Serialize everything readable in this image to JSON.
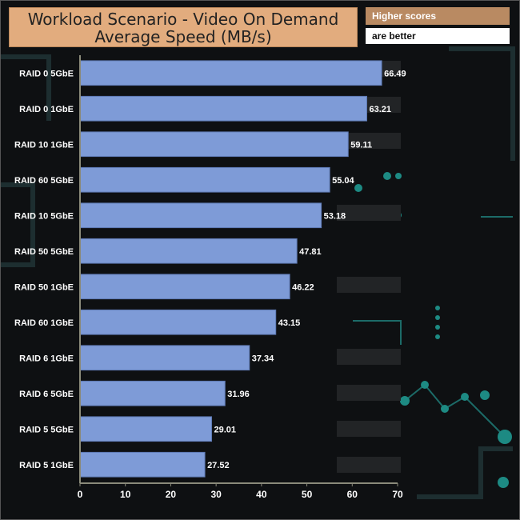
{
  "title_line1": "Workload Scenario - Video On Demand",
  "title_line2": "Average Speed (MB/s)",
  "note_line1": "Higher scores",
  "note_line2": "are better",
  "colors": {
    "bar": "#7e9bd7",
    "bar_edge": "#5d79b3",
    "title_bg": "#e2ac7e",
    "axis": "#8a8a7a"
  },
  "chart_data": {
    "type": "bar",
    "orientation": "horizontal",
    "title": "Workload Scenario - Video On Demand Average Speed (MB/s)",
    "categories": [
      "RAID 0 5GbE",
      "RAID 0 1GbE",
      "RAID 10 1GbE",
      "RAID 60 5GbE",
      "RAID 10 5GbE",
      "RAID 50 5GbE",
      "RAID 50 1GbE",
      "RAID 60 1GbE",
      "RAID 6 1GbE",
      "RAID 6 5GbE",
      "RAID 5 5GbE",
      "RAID 5 1GbE"
    ],
    "values": [
      66.49,
      63.21,
      59.11,
      55.04,
      53.18,
      47.81,
      46.22,
      43.15,
      37.34,
      31.96,
      29.01,
      27.52
    ],
    "value_labels": [
      "66.49",
      "63.21",
      "59.11",
      "55.04",
      "53.18",
      "47.81",
      "46.22",
      "43.15",
      "37.34",
      "31.96",
      "29.01",
      "27.52"
    ],
    "xlim": [
      0,
      70
    ],
    "xticks": [
      0,
      10,
      20,
      30,
      40,
      50,
      60,
      70
    ],
    "xtick_labels": [
      "0",
      "10",
      "20",
      "30",
      "40",
      "50",
      "60",
      "70"
    ],
    "grid": false,
    "legend": "none"
  }
}
